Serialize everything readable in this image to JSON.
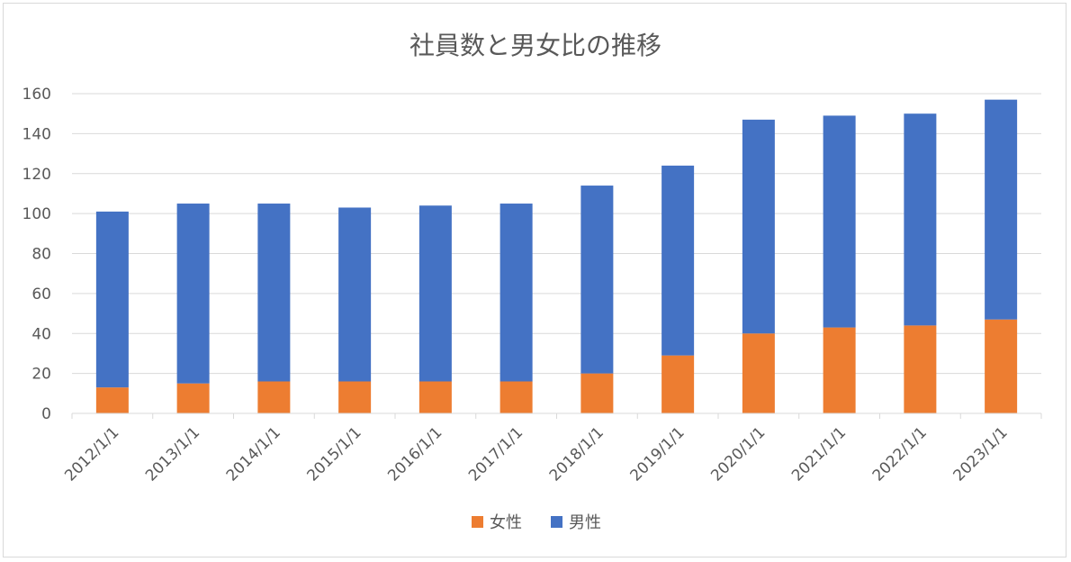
{
  "chart_data": {
    "type": "bar",
    "stacked": true,
    "title": "社員数と男女比の推移",
    "xlabel": "",
    "ylabel": "",
    "categories": [
      "2012/1/1",
      "2013/1/1",
      "2014/1/1",
      "2015/1/1",
      "2016/1/1",
      "2017/1/1",
      "2018/1/1",
      "2019/1/1",
      "2020/1/1",
      "2021/1/1",
      "2022/1/1",
      "2023/1/1"
    ],
    "series": [
      {
        "name": "女性",
        "color": "#ed7d31",
        "values": [
          13,
          15,
          16,
          16,
          16,
          16,
          20,
          29,
          40,
          43,
          44,
          47
        ]
      },
      {
        "name": "男性",
        "color": "#4472c4",
        "values": [
          88,
          90,
          89,
          87,
          88,
          89,
          94,
          95,
          107,
          106,
          106,
          110
        ]
      }
    ],
    "ylim": [
      0,
      160
    ],
    "yticks": [
      0,
      20,
      40,
      60,
      80,
      100,
      120,
      140,
      160
    ],
    "grid": true,
    "legend_position": "bottom"
  }
}
